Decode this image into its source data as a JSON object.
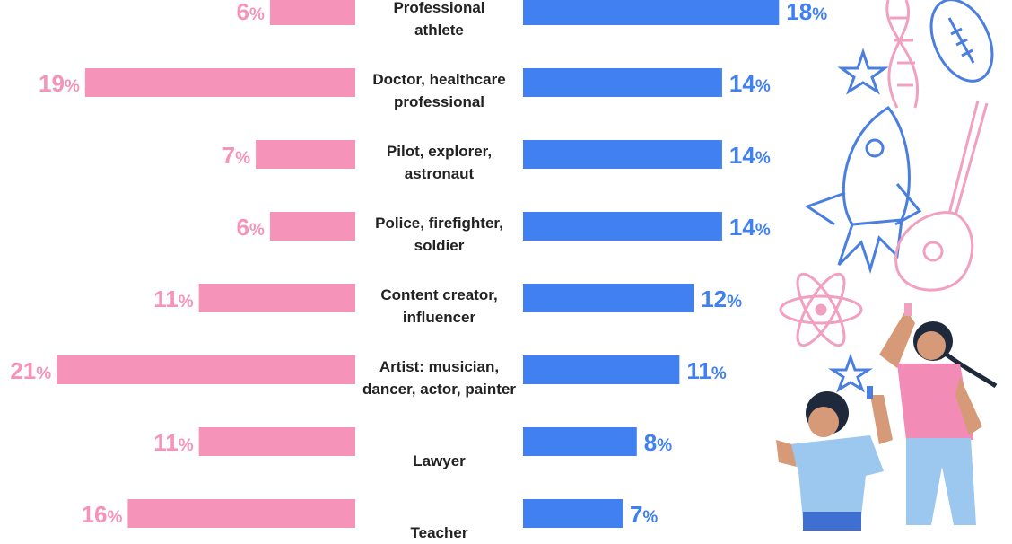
{
  "chart_data": {
    "type": "bar",
    "orientation": "horizontal-butterfly",
    "categories": [
      "Professional athlete",
      "Doctor, healthcare professional",
      "Pilot, explorer, astronaut",
      "Police, firefighter, soldier",
      "Content creator, influencer",
      "Artist: musician, dancer, actor, painter",
      "Lawyer",
      "Teacher"
    ],
    "category_lines": [
      [
        "Professional",
        "athlete"
      ],
      [
        "Doctor, healthcare",
        "professional"
      ],
      [
        "Pilot, explorer,",
        "astronaut"
      ],
      [
        "Police, firefighter,",
        "soldier"
      ],
      [
        "Content creator,",
        "influencer"
      ],
      [
        "Artist: musician,",
        "dancer, actor, painter"
      ],
      [
        "Lawyer"
      ],
      [
        "Teacher"
      ]
    ],
    "series": [
      {
        "values": [
          6,
          19,
          7,
          6,
          11,
          21,
          11,
          16
        ],
        "color": "#f593b8",
        "side": "left"
      },
      {
        "values": [
          18,
          14,
          14,
          14,
          12,
          11,
          8,
          7
        ],
        "color": "#4080f0",
        "side": "right"
      }
    ],
    "value_suffix": "%"
  },
  "illustration": {
    "icons": [
      "dna-icon",
      "football-icon",
      "star-icon",
      "rocket-icon",
      "guitar-icon",
      "atom-icon",
      "children-drawing-illustration"
    ]
  }
}
